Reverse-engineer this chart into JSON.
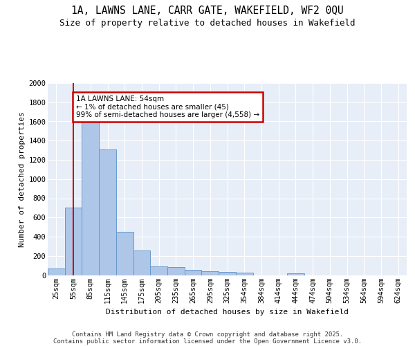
{
  "title_line1": "1A, LAWNS LANE, CARR GATE, WAKEFIELD, WF2 0QU",
  "title_line2": "Size of property relative to detached houses in Wakefield",
  "xlabel": "Distribution of detached houses by size in Wakefield",
  "ylabel": "Number of detached properties",
  "categories": [
    "25sqm",
    "55sqm",
    "85sqm",
    "115sqm",
    "145sqm",
    "175sqm",
    "205sqm",
    "235sqm",
    "265sqm",
    "295sqm",
    "325sqm",
    "354sqm",
    "384sqm",
    "414sqm",
    "444sqm",
    "474sqm",
    "504sqm",
    "534sqm",
    "564sqm",
    "594sqm",
    "624sqm"
  ],
  "values": [
    65,
    700,
    1670,
    1310,
    450,
    255,
    90,
    80,
    55,
    40,
    30,
    25,
    0,
    0,
    20,
    0,
    0,
    0,
    0,
    0,
    0
  ],
  "bar_color": "#aec6e8",
  "bar_edge_color": "#6699cc",
  "marker_label": "1A LAWNS LANE: 54sqm",
  "marker_line1": "← 1% of detached houses are smaller (45)",
  "marker_line2": "99% of semi-detached houses are larger (4,558) →",
  "annotation_box_color": "#cc0000",
  "vline_color": "#cc0000",
  "ylim": [
    0,
    2000
  ],
  "yticks": [
    0,
    200,
    400,
    600,
    800,
    1000,
    1200,
    1400,
    1600,
    1800,
    2000
  ],
  "background_color": "#e8eef8",
  "grid_color": "#ffffff",
  "footer_line1": "Contains HM Land Registry data © Crown copyright and database right 2025.",
  "footer_line2": "Contains public sector information licensed under the Open Government Licence v3.0.",
  "title_fontsize": 10.5,
  "subtitle_fontsize": 9,
  "axis_label_fontsize": 8,
  "tick_fontsize": 7.5,
  "footer_fontsize": 6.5,
  "annot_fontsize": 7.5
}
